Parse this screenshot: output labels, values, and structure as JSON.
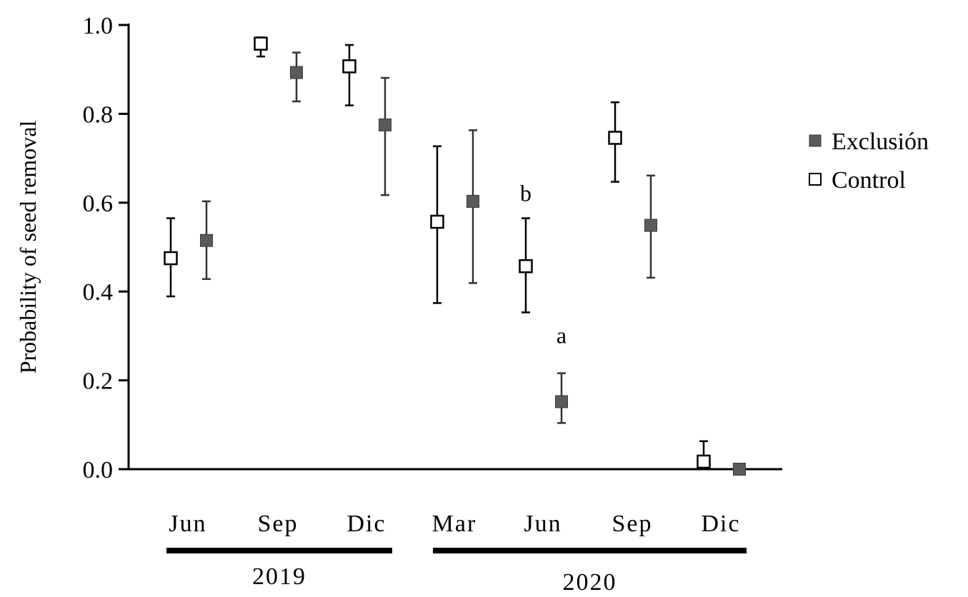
{
  "chart_data": {
    "type": "scatter",
    "ylabel": "Probability of seed removal",
    "ylim": [
      0,
      1
    ],
    "yticks": [
      "0.0",
      "0.2",
      "0.4",
      "0.6",
      "0.8",
      "1.0"
    ],
    "ytick_values": [
      0,
      0.2,
      0.4,
      0.6,
      0.8,
      1.0
    ],
    "categories": [
      "Jun",
      "Sep",
      "Dic",
      "Mar",
      "Jun",
      "Sep",
      "Dic"
    ],
    "years": [
      {
        "label": "2019",
        "categories": [
          "Jun",
          "Sep",
          "Dic"
        ]
      },
      {
        "label": "2020",
        "categories": [
          "Mar",
          "Jun",
          "Sep",
          "Dic"
        ]
      }
    ],
    "legend_position": "right",
    "series": [
      {
        "name": "Exclusión",
        "marker": "filled-square",
        "color": "#5a5a5a",
        "values": [
          0.515,
          0.893,
          0.775,
          0.603,
          0.152,
          0.549,
          0.0
        ],
        "lower": [
          0.428,
          0.828,
          0.617,
          0.419,
          0.104,
          0.431,
          0.0
        ],
        "upper": [
          0.603,
          0.938,
          0.881,
          0.763,
          0.216,
          0.661,
          0.0
        ]
      },
      {
        "name": "Control",
        "marker": "open-square",
        "color": "#ffffff",
        "values": [
          0.475,
          0.958,
          0.907,
          0.557,
          0.457,
          0.746,
          0.017
        ],
        "lower": [
          0.389,
          0.929,
          0.819,
          0.374,
          0.353,
          0.647,
          0.0
        ],
        "upper": [
          0.565,
          0.972,
          0.955,
          0.727,
          0.565,
          0.826,
          0.063
        ]
      }
    ],
    "annotations": [
      {
        "text": "b",
        "category_index": 4,
        "series": "Control",
        "y": 0.62
      },
      {
        "text": "a",
        "category_index": 4,
        "series": "Exclusión",
        "y": 0.3
      }
    ]
  }
}
